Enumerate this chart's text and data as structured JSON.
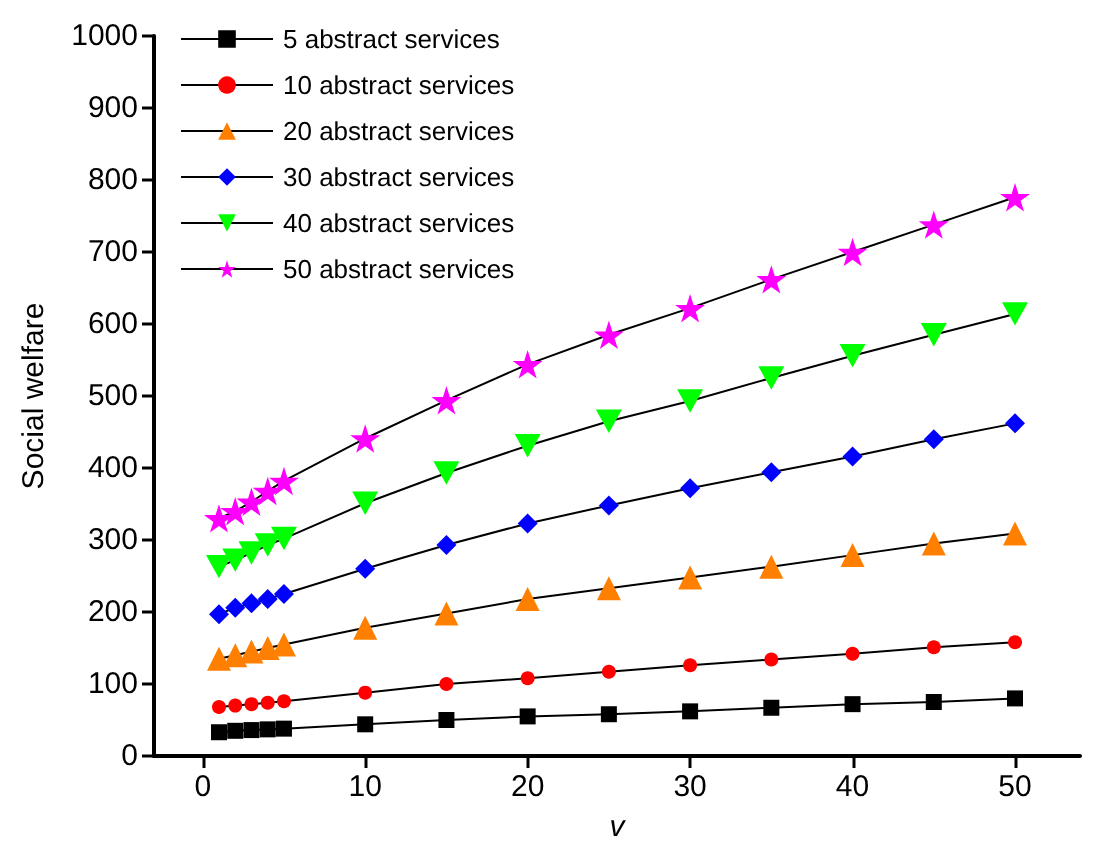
{
  "chart_data": {
    "type": "line",
    "xlabel": "v",
    "ylabel": "Social welfare",
    "x": [
      1,
      2,
      3,
      4,
      5,
      10,
      15,
      20,
      25,
      30,
      35,
      40,
      45,
      50
    ],
    "xlim": [
      -3,
      54
    ],
    "xticks": [
      0,
      10,
      20,
      30,
      40,
      50
    ],
    "ylim": [
      0,
      1000
    ],
    "yticks": [
      0,
      100,
      200,
      300,
      400,
      500,
      600,
      700,
      800,
      900,
      1000
    ],
    "grid": false,
    "legend": "top left",
    "line_style": "solid",
    "series": [
      {
        "name": "5 abstract services",
        "color": "#000000",
        "marker": "square",
        "values": [
          33,
          35,
          36,
          37,
          38,
          44,
          50,
          55,
          58,
          62,
          67,
          72,
          75,
          80
        ]
      },
      {
        "name": "10 abstract services",
        "color": "#ff0000",
        "marker": "circle",
        "values": [
          68,
          70,
          72,
          74,
          76,
          88,
          100,
          108,
          117,
          126,
          134,
          142,
          151,
          158
        ]
      },
      {
        "name": "20 abstract services",
        "color": "#ff8000",
        "marker": "triangle",
        "values": [
          135,
          140,
          145,
          150,
          155,
          178,
          198,
          218,
          233,
          248,
          263,
          279,
          295,
          309
        ]
      },
      {
        "name": "30 abstract services",
        "color": "#0000ff",
        "marker": "diamond",
        "values": [
          197,
          206,
          212,
          218,
          225,
          260,
          293,
          323,
          348,
          372,
          394,
          416,
          440,
          462
        ]
      },
      {
        "name": "40 abstract services",
        "color": "#00ff00",
        "marker": "triangle-down",
        "values": [
          263,
          272,
          282,
          293,
          302,
          351,
          393,
          431,
          465,
          493,
          525,
          556,
          585,
          614
        ]
      },
      {
        "name": "50 abstract services",
        "color": "#ff00ff",
        "marker": "star",
        "values": [
          330,
          340,
          353,
          368,
          382,
          441,
          494,
          544,
          585,
          622,
          662,
          700,
          738,
          776
        ]
      }
    ]
  }
}
